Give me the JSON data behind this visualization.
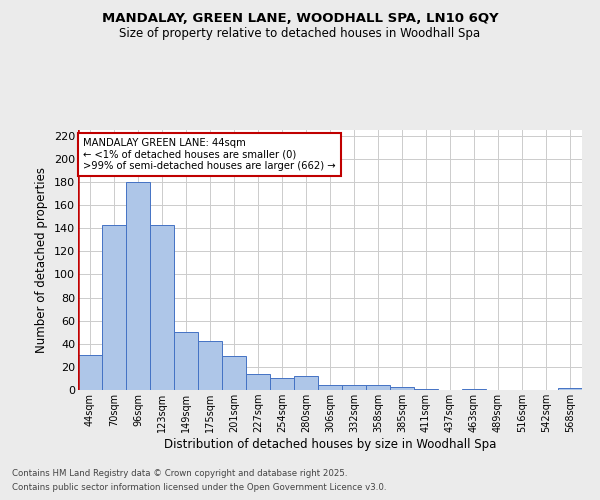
{
  "title1": "MANDALAY, GREEN LANE, WOODHALL SPA, LN10 6QY",
  "title2": "Size of property relative to detached houses in Woodhall Spa",
  "xlabel": "Distribution of detached houses by size in Woodhall Spa",
  "ylabel": "Number of detached properties",
  "bar_labels": [
    "44sqm",
    "70sqm",
    "96sqm",
    "123sqm",
    "149sqm",
    "175sqm",
    "201sqm",
    "227sqm",
    "254sqm",
    "280sqm",
    "306sqm",
    "332sqm",
    "358sqm",
    "385sqm",
    "411sqm",
    "437sqm",
    "463sqm",
    "489sqm",
    "516sqm",
    "542sqm",
    "568sqm"
  ],
  "bar_values": [
    30,
    143,
    180,
    143,
    50,
    42,
    29,
    14,
    10,
    12,
    4,
    4,
    4,
    3,
    1,
    0,
    1,
    0,
    0,
    0,
    2
  ],
  "bar_color": "#aec6e8",
  "bar_edge_color": "#4472c4",
  "highlight_color": "#c00000",
  "ylim": [
    0,
    225
  ],
  "yticks": [
    0,
    20,
    40,
    60,
    80,
    100,
    120,
    140,
    160,
    180,
    200,
    220
  ],
  "annotation_title": "MANDALAY GREEN LANE: 44sqm",
  "annotation_line1": "← <1% of detached houses are smaller (0)",
  "annotation_line2": ">99% of semi-detached houses are larger (662) →",
  "footer1": "Contains HM Land Registry data © Crown copyright and database right 2025.",
  "footer2": "Contains public sector information licensed under the Open Government Licence v3.0.",
  "bg_color": "#ebebeb",
  "plot_bg_color": "#ffffff",
  "grid_color": "#cccccc"
}
